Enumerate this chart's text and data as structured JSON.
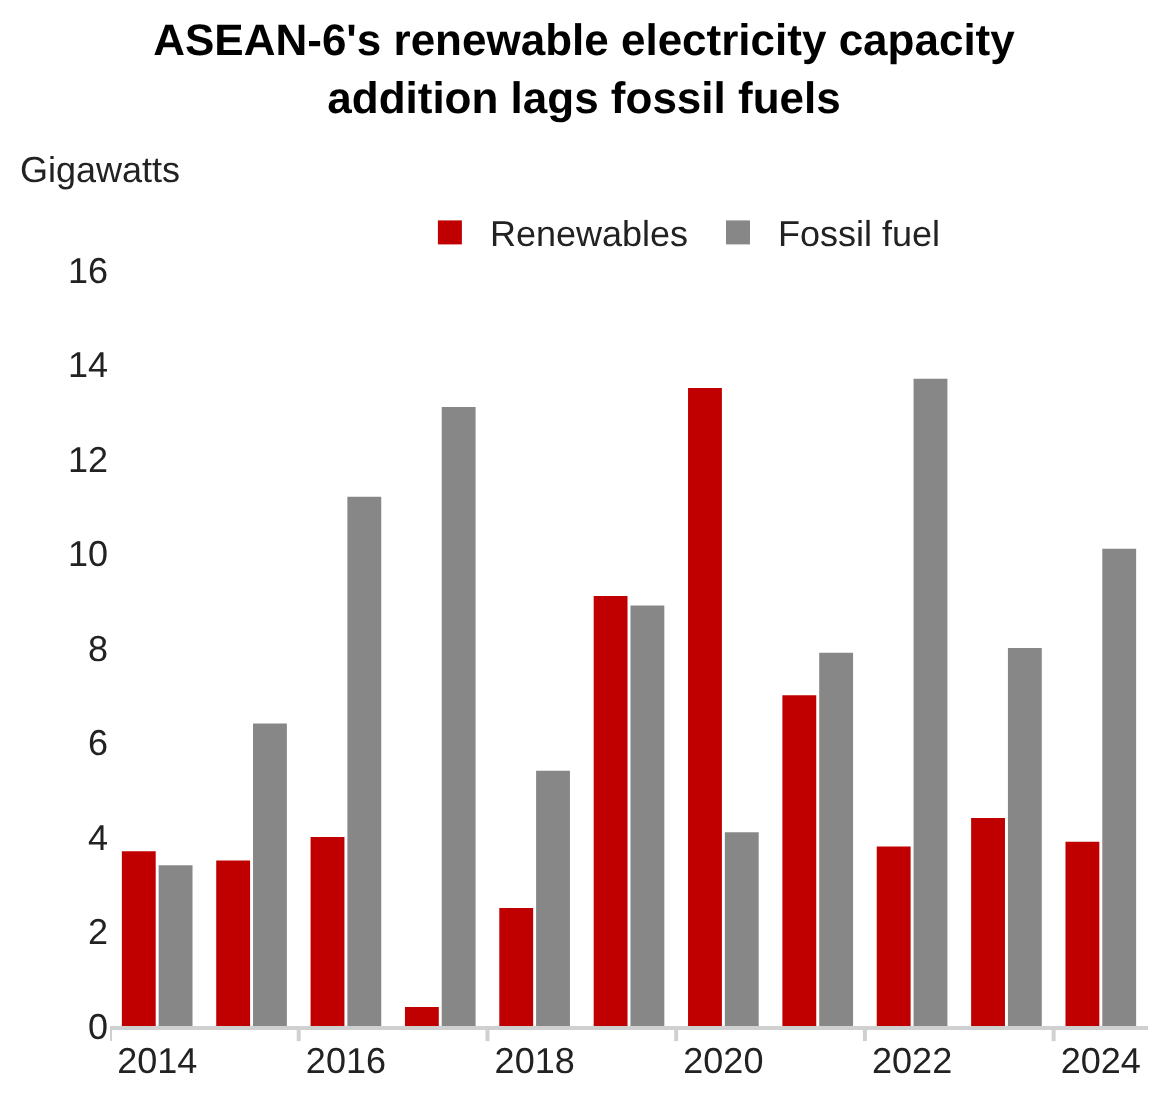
{
  "chart_data": {
    "type": "bar",
    "title": "ASEAN-6's renewable electricity capacity addition lags fossil fuels",
    "ylabel": "Gigawatts",
    "categories": [
      "2014",
      null,
      "2016",
      null,
      "2018",
      null,
      "2020",
      null,
      "2022",
      null,
      "2024"
    ],
    "series": [
      {
        "name": "Renewables",
        "color": "#c00000",
        "values": [
          3.7,
          3.5,
          4.0,
          0.4,
          2.5,
          9.1,
          13.5,
          7.0,
          3.8,
          4.4,
          3.9
        ]
      },
      {
        "name": "Fossil fuel",
        "color": "#878787",
        "values": [
          3.4,
          6.4,
          11.2,
          13.1,
          5.4,
          8.9,
          4.1,
          7.9,
          13.7,
          8.0,
          10.1
        ]
      }
    ],
    "ylim": [
      0,
      16
    ],
    "yticks": [
      0,
      2,
      4,
      6,
      8,
      10,
      12,
      14,
      16
    ],
    "grid": false,
    "legend": "top"
  }
}
